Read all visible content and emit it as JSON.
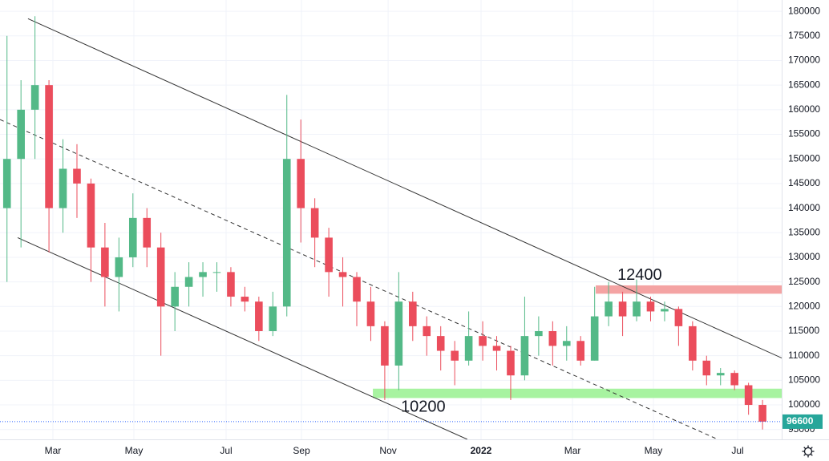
{
  "chart_data": {
    "type": "candlestick",
    "x": [
      5,
      15,
      25,
      35,
      45,
      55,
      65,
      75,
      85,
      95,
      105,
      115,
      125,
      135,
      145,
      155,
      165,
      175,
      185,
      195,
      205,
      215,
      225,
      235,
      245,
      255,
      265,
      275,
      285,
      295,
      305,
      315,
      325,
      335,
      345,
      355,
      365,
      375,
      385,
      395,
      405,
      415,
      425,
      435,
      445,
      455,
      465,
      475,
      485,
      495,
      505,
      515,
      525,
      535,
      545
    ],
    "open": [
      140000,
      150000,
      160000,
      165000,
      140000,
      148000,
      145000,
      132000,
      126000,
      130000,
      138000,
      132000,
      120000,
      124000,
      126000,
      127000,
      127000,
      122000,
      121000,
      115000,
      120000,
      150000,
      140000,
      134000,
      127000,
      126000,
      121000,
      116000,
      108000,
      121000,
      116000,
      114000,
      111000,
      109000,
      114000,
      112000,
      111000,
      106000,
      114000,
      115000,
      112000,
      113000,
      109000,
      118000,
      121000,
      118000,
      121000,
      119000,
      119500,
      116000,
      109000,
      106000,
      106500,
      104000,
      100000
    ],
    "high": [
      175000,
      166000,
      179000,
      166000,
      154000,
      153000,
      146000,
      137000,
      134000,
      143000,
      140000,
      135000,
      127000,
      129000,
      129000,
      129000,
      128000,
      124000,
      122000,
      123000,
      163000,
      158000,
      142000,
      136000,
      130000,
      127000,
      124000,
      117000,
      127000,
      123000,
      118000,
      116000,
      113000,
      119000,
      117000,
      114000,
      112000,
      122000,
      118000,
      117000,
      116000,
      114000,
      124000,
      125000,
      123000,
      125500,
      122000,
      121000,
      120000,
      117000,
      110000,
      107500,
      107000,
      104500,
      101000
    ],
    "low": [
      125000,
      132000,
      150000,
      131000,
      135000,
      138000,
      125000,
      120000,
      119000,
      128000,
      128000,
      110000,
      115000,
      120000,
      122000,
      123000,
      120000,
      119000,
      113000,
      114000,
      118000,
      133000,
      128000,
      122000,
      120000,
      116000,
      113000,
      101000,
      103000,
      113000,
      110000,
      107000,
      104000,
      108000,
      109000,
      107000,
      101000,
      105000,
      110000,
      108000,
      109000,
      108000,
      109000,
      116000,
      114000,
      117000,
      117000,
      117000,
      112000,
      107000,
      104000,
      104000,
      103000,
      98000,
      95000
    ],
    "close": [
      150000,
      160000,
      165000,
      140000,
      148000,
      145000,
      132000,
      126000,
      130000,
      138000,
      132000,
      120000,
      124000,
      126000,
      127000,
      127000,
      122000,
      121000,
      115000,
      120000,
      150000,
      140000,
      134000,
      127000,
      126000,
      121000,
      116000,
      108000,
      121000,
      116000,
      114000,
      111000,
      109000,
      114000,
      112000,
      111000,
      106000,
      114000,
      115000,
      112000,
      113000,
      109000,
      118000,
      121000,
      118000,
      121000,
      119000,
      119500,
      116000,
      109000,
      106000,
      106500,
      104000,
      100000,
      96600
    ],
    "up_color": "#53b987",
    "down_color": "#eb4d5c",
    "xlim": [
      0,
      558.7
    ],
    "xticks": [
      {
        "value": 37.8,
        "label": "Mar"
      },
      {
        "value": 95.7,
        "label": "May"
      },
      {
        "value": 161.6,
        "label": "Jul"
      },
      {
        "value": 215.5,
        "label": "Sep"
      },
      {
        "value": 277.4,
        "label": "Nov"
      },
      {
        "value": 343.8,
        "label": "2022"
      },
      {
        "value": 409.2,
        "label": "Mar"
      },
      {
        "value": 467,
        "label": "May"
      },
      {
        "value": 527.2,
        "label": "Jul"
      }
    ],
    "ylim": [
      93000,
      182300
    ],
    "yticks": [
      95000,
      100000,
      105000,
      110000,
      115000,
      120000,
      125000,
      130000,
      135000,
      140000,
      145000,
      150000,
      155000,
      160000,
      165000,
      170000,
      175000,
      180000
    ],
    "grid": true,
    "trendlines": [
      {
        "points": [
          [
            20,
            178500
          ],
          [
            559,
            109500
          ]
        ],
        "dashed": false,
        "color": "#333333"
      },
      {
        "points": [
          [
            12.6,
            134000
          ],
          [
            334,
            93000
          ]
        ],
        "dashed": false,
        "color": "#333333"
      },
      {
        "points": [
          [
            0,
            158000
          ],
          [
            513,
            93000
          ]
        ],
        "dashed": true,
        "color": "#333333"
      }
    ],
    "zones": [
      {
        "label": "12400",
        "x0": 425.8,
        "x1": 558.7,
        "y0": 122600,
        "y1": 124300,
        "color": "#f4a3a3",
        "label_side": "above"
      },
      {
        "label": "10200",
        "x0": 266.5,
        "x1": 558.7,
        "y0": 101400,
        "y1": 103300,
        "color": "#a7f3a0",
        "label_side": "below"
      }
    ],
    "last_price": 96600,
    "last_price_color": "#26a69a"
  }
}
